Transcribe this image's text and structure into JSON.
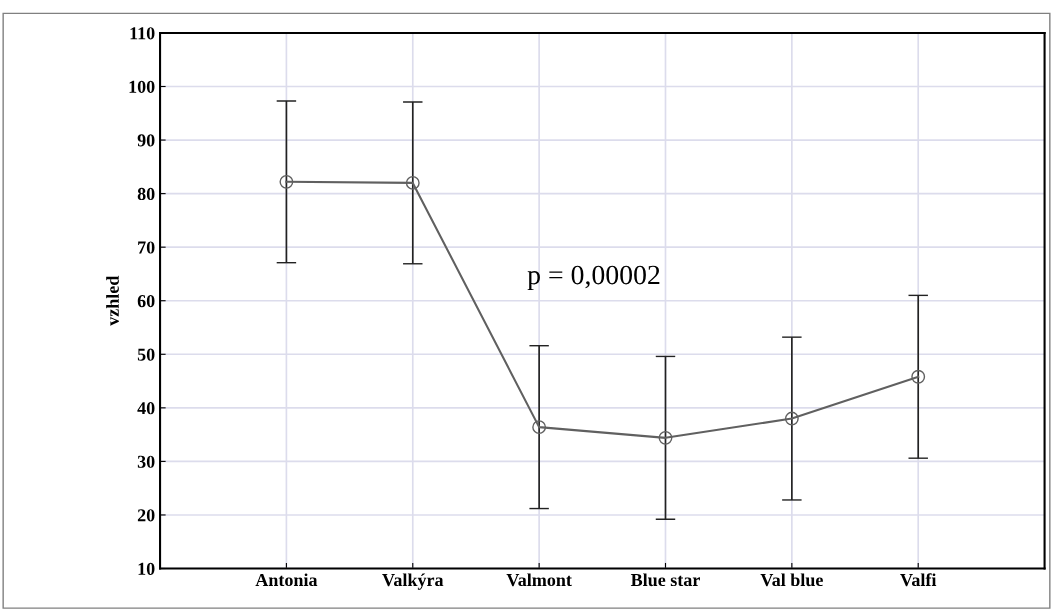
{
  "chart_data": {
    "type": "line",
    "ylabel": "vzhled",
    "categories": [
      "Antonia",
      "Valkýra",
      "Valmont",
      "Blue star",
      "Val blue",
      "Valfi"
    ],
    "series": [
      {
        "color": "#606060",
        "values": [
          82.2,
          82.0,
          36.4,
          34.4,
          38.0,
          45.8
        ],
        "errors": [
          15.1,
          15.1,
          15.2,
          15.2,
          15.2,
          15.2
        ]
      }
    ],
    "ylim": [
      10,
      110
    ],
    "yticks": [
      10,
      20,
      30,
      40,
      50,
      60,
      70,
      80,
      90,
      100,
      110
    ],
    "grid": true,
    "marker": "circle",
    "line_style": "solid",
    "annotations": [
      "p = 0,00002"
    ]
  }
}
